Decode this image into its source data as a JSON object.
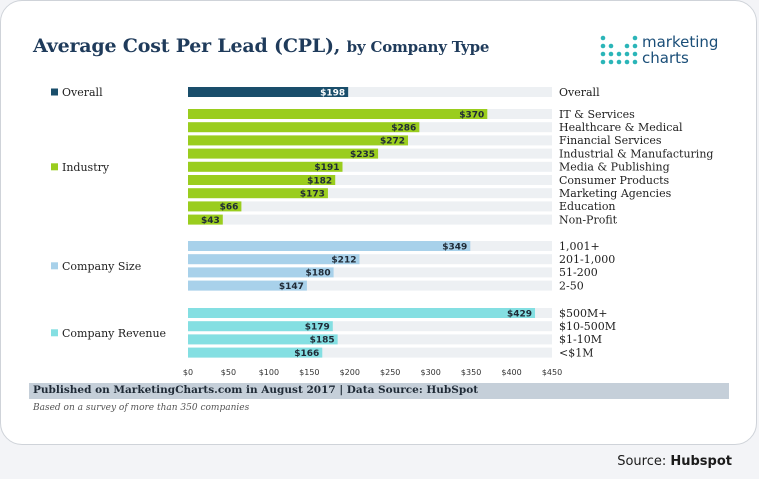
{
  "title_main": "Average Cost Per Lead (CPL),",
  "title_sub": "by Company Type",
  "logo": {
    "line1": "marketing",
    "line2": "charts"
  },
  "footer": {
    "published": "Published on MarketingCharts.com in August 2017 | Data Source: HubSpot",
    "note": "Based on a survey of more than 350 companies"
  },
  "source": {
    "label": "Source:",
    "name": "Hubspot"
  },
  "colors": {
    "Overall": "#1a4e6b",
    "Industry": "#9acd1e",
    "Company Size": "#a8d1ea",
    "Company Revenue": "#84dfe2"
  },
  "chart_data": {
    "type": "bar",
    "orientation": "horizontal",
    "xlim": [
      0,
      450
    ],
    "x_ticks": [
      "$0",
      "$50",
      "$100",
      "$150",
      "$200",
      "$250",
      "$300",
      "$350",
      "$400",
      "$450"
    ],
    "groups": [
      {
        "name": "Overall",
        "items": [
          {
            "label": "Overall",
            "value": 198,
            "value_label": "$198"
          }
        ]
      },
      {
        "name": "Industry",
        "items": [
          {
            "label": "IT & Services",
            "value": 370,
            "value_label": "$370"
          },
          {
            "label": "Healthcare & Medical",
            "value": 286,
            "value_label": "$286"
          },
          {
            "label": "Financial Services",
            "value": 272,
            "value_label": "$272"
          },
          {
            "label": "Industrial & Manufacturing",
            "value": 235,
            "value_label": "$235"
          },
          {
            "label": "Media & Publishing",
            "value": 191,
            "value_label": "$191"
          },
          {
            "label": "Consumer Products",
            "value": 182,
            "value_label": "$182"
          },
          {
            "label": "Marketing Agencies",
            "value": 173,
            "value_label": "$173"
          },
          {
            "label": "Education",
            "value": 66,
            "value_label": "$66"
          },
          {
            "label": "Non-Profit",
            "value": 43,
            "value_label": "$43"
          }
        ]
      },
      {
        "name": "Company Size",
        "items": [
          {
            "label": "1,001+",
            "value": 349,
            "value_label": "$349"
          },
          {
            "label": "201-1,000",
            "value": 212,
            "value_label": "$212"
          },
          {
            "label": "51-200",
            "value": 180,
            "value_label": "$180"
          },
          {
            "label": "2-50",
            "value": 147,
            "value_label": "$147"
          }
        ]
      },
      {
        "name": "Company Revenue",
        "items": [
          {
            "label": "$500M+",
            "value": 429,
            "value_label": "$429"
          },
          {
            "label": "$10-500M",
            "value": 179,
            "value_label": "$179"
          },
          {
            "label": "$1-10M",
            "value": 185,
            "value_label": "$185"
          },
          {
            "label": "<$1M",
            "value": 166,
            "value_label": "$166"
          }
        ]
      }
    ]
  }
}
